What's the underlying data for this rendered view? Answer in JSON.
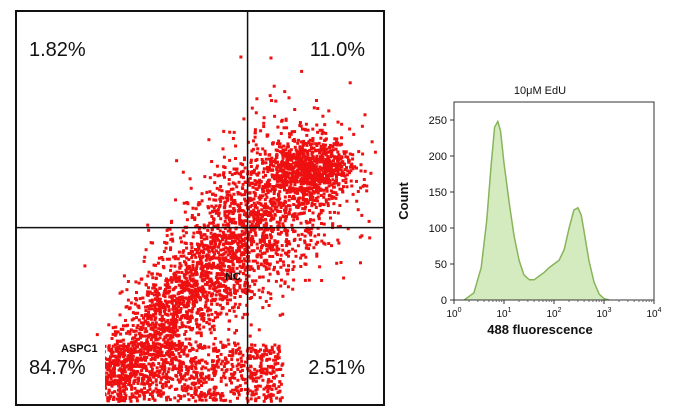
{
  "chart_data": [
    {
      "type": "scatter",
      "title": "",
      "xlabel": "",
      "ylabel": "",
      "sample_label": "ASPC1",
      "center_label": "NC",
      "quadrants": {
        "upper_left": "1.82%",
        "upper_right": "11.0%",
        "lower_left": "84.7%",
        "lower_right": "2.51%"
      },
      "point_color": "#ee1111",
      "gate": {
        "x": 0.63,
        "y": 0.55
      }
    },
    {
      "type": "area",
      "title": "10μM EdU",
      "xlabel": "488 fluorescence",
      "ylabel": "Count",
      "x_scale": "log",
      "xlim": [
        1,
        10000
      ],
      "ylim": [
        0,
        275
      ],
      "x_ticks": [
        {
          "value": 1,
          "base": "10",
          "exp": "0"
        },
        {
          "value": 10,
          "base": "10",
          "exp": "1"
        },
        {
          "value": 100,
          "base": "10",
          "exp": "2"
        },
        {
          "value": 1000,
          "base": "10",
          "exp": "3"
        },
        {
          "value": 10000,
          "base": "10",
          "exp": "4"
        }
      ],
      "y_ticks": [
        "0",
        "50",
        "100",
        "150",
        "200",
        "250"
      ],
      "fill_color": "#d4ebc0",
      "line_color": "#88b45a",
      "x": [
        1.6,
        2.5,
        3.5,
        4.5,
        5.5,
        6.5,
        7.5,
        8.5,
        10,
        13,
        16,
        20,
        25,
        32,
        40,
        50,
        63,
        80,
        100,
        126,
        160,
        200,
        250,
        300,
        350,
        400,
        500,
        630,
        800,
        1000,
        1260
      ],
      "y": [
        0,
        10,
        45,
        110,
        185,
        240,
        248,
        235,
        190,
        130,
        88,
        55,
        35,
        28,
        28,
        33,
        38,
        45,
        50,
        55,
        70,
        100,
        125,
        128,
        118,
        95,
        55,
        25,
        8,
        2,
        0
      ]
    }
  ]
}
